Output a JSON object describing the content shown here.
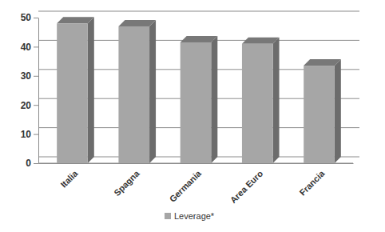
{
  "chart_data": {
    "type": "bar",
    "categories": [
      "Italia",
      "Spagna",
      "Germania",
      "Area Euro",
      "Francia"
    ],
    "series": [
      {
        "name": "Leverage*",
        "color": "#a6a6a6",
        "values": [
          48,
          47,
          41.5,
          41,
          33.5
        ]
      }
    ],
    "ylim": [
      0,
      50
    ],
    "yticks": [
      0,
      10,
      20,
      30,
      40,
      50
    ],
    "grid": true,
    "legend": "bottom"
  }
}
